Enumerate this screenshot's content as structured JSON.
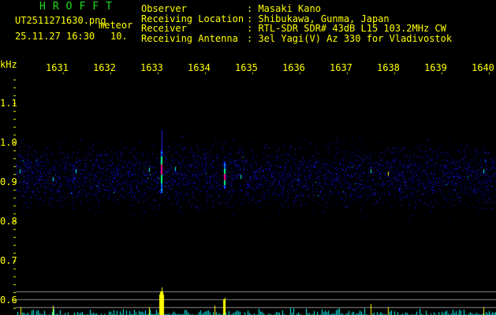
{
  "header": {
    "app_name": "HROFFT",
    "filename": "UT2511271630.png",
    "mode": "meteor",
    "datetime": "25.11.27 16:30",
    "value": "10.",
    "info": [
      {
        "label": "Observer",
        "value": ": Masaki Kano"
      },
      {
        "label": "Receiving Location",
        "value": ": Shibukawa, Gunma, Japan"
      },
      {
        "label": "Receiver",
        "value": ": RTL-SDR SDR# 43dB L15 103.2MHz CW"
      },
      {
        "label": "Receiving Antenna",
        "value": ": 3el Yagi(V) Az 330 for Vladivostok"
      }
    ]
  },
  "x_axis": {
    "unit": "kHz",
    "labels": [
      "1631",
      "1632",
      "1633",
      "1634",
      "1635",
      "1636",
      "1637",
      "1638",
      "1639",
      "1640"
    ]
  },
  "y_axis": {
    "labels": [
      "1.1",
      "1.0",
      "0.9",
      "0.8",
      "0.7",
      "0.6"
    ]
  },
  "colors": {
    "text": "#ffff00",
    "title": "#22dd22",
    "noise": "#0000ff",
    "spectrum": "#00ffff",
    "meteor": "#ff0080"
  }
}
